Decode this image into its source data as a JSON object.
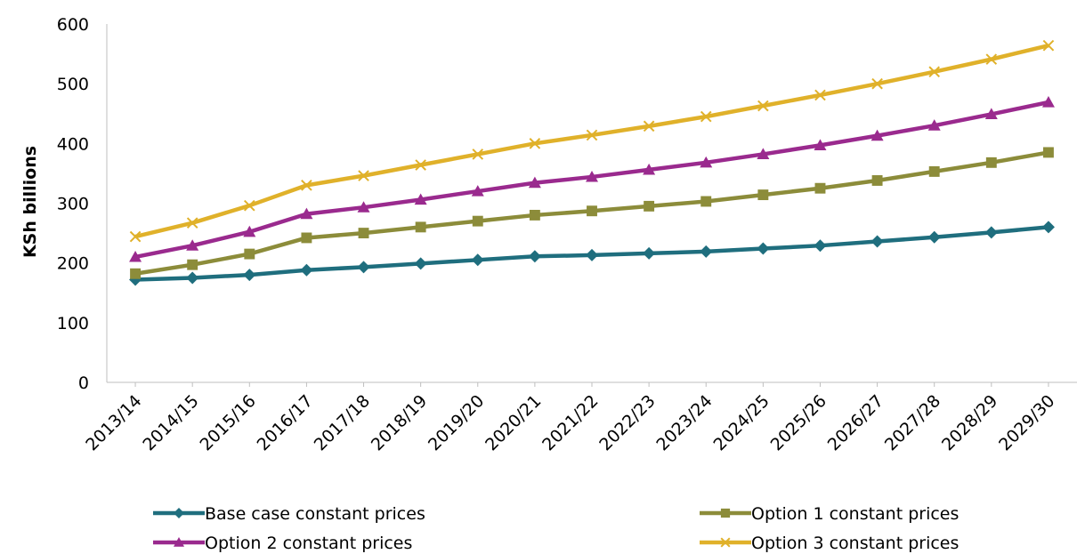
{
  "chart_data": {
    "type": "line",
    "title": "",
    "xlabel": "",
    "ylabel": "KSh billions",
    "ylim": [
      0,
      600
    ],
    "yticks": [
      0,
      100,
      200,
      300,
      400,
      500,
      600
    ],
    "grid": false,
    "legend_position": "bottom",
    "categories": [
      "2013/14",
      "2014/15",
      "2015/16",
      "2016/17",
      "2017/18",
      "2018/19",
      "2019/20",
      "2020/21",
      "2021/22",
      "2022/23",
      "2023/24",
      "2024/25",
      "2025/26",
      "2026/27",
      "2027/28",
      "2028/29",
      "2029/30"
    ],
    "series": [
      {
        "name": "Base case constant prices",
        "color": "#1F6E7E",
        "marker": "diamond",
        "values": [
          172,
          175,
          180,
          188,
          193,
          199,
          205,
          211,
          213,
          216,
          219,
          224,
          229,
          236,
          243,
          251,
          260
        ]
      },
      {
        "name": "Option 1 constant prices",
        "color": "#8C8C3A",
        "marker": "square",
        "values": [
          182,
          197,
          215,
          242,
          250,
          260,
          270,
          280,
          287,
          295,
          303,
          314,
          325,
          338,
          353,
          368,
          385
        ]
      },
      {
        "name": "Option 2 constant prices",
        "color": "#9A2A8E",
        "marker": "triangle",
        "values": [
          210,
          229,
          252,
          282,
          293,
          306,
          320,
          334,
          344,
          356,
          368,
          382,
          397,
          413,
          430,
          449,
          469
        ]
      },
      {
        "name": "Option 3 constant prices",
        "color": "#E0B12A",
        "marker": "x",
        "values": [
          244,
          267,
          296,
          330,
          346,
          364,
          382,
          400,
          414,
          429,
          445,
          463,
          481,
          500,
          520,
          541,
          564
        ]
      }
    ]
  }
}
